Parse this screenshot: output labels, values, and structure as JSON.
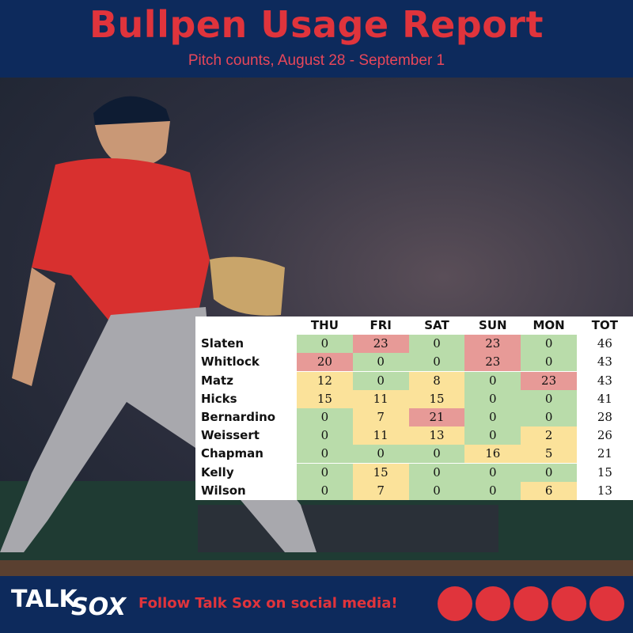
{
  "header": {
    "title": "Bullpen Usage Report",
    "subtitle": "Pitch counts, August 28 - September 1"
  },
  "table": {
    "columns": [
      "THU",
      "FRI",
      "SAT",
      "SUN",
      "MON",
      "TOT"
    ],
    "rows": [
      {
        "name": "Slaten",
        "values": [
          0,
          23,
          0,
          23,
          0
        ],
        "total": 46
      },
      {
        "name": "Whitlock",
        "values": [
          20,
          0,
          0,
          23,
          0
        ],
        "total": 43
      },
      {
        "name": "Matz",
        "values": [
          12,
          0,
          8,
          0,
          23
        ],
        "total": 43
      },
      {
        "name": "Hicks",
        "values": [
          15,
          11,
          15,
          0,
          0
        ],
        "total": 41
      },
      {
        "name": "Bernardino",
        "values": [
          0,
          7,
          21,
          0,
          0
        ],
        "total": 28
      },
      {
        "name": "Weissert",
        "values": [
          0,
          11,
          13,
          0,
          2
        ],
        "total": 26
      },
      {
        "name": "Chapman",
        "values": [
          0,
          0,
          0,
          16,
          5
        ],
        "total": 21
      },
      {
        "name": "Kelly",
        "values": [
          0,
          15,
          0,
          0,
          0
        ],
        "total": 15
      },
      {
        "name": "Wilson",
        "values": [
          0,
          7,
          0,
          0,
          6
        ],
        "total": 13
      }
    ]
  },
  "footer": {
    "logo": [
      "TALK",
      "SOX"
    ],
    "cta": "Follow Talk Sox on social media!"
  }
}
